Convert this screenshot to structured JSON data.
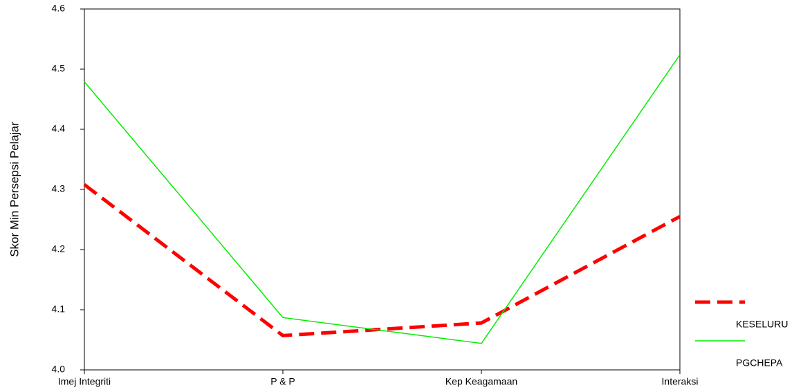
{
  "chart_data": {
    "type": "line",
    "y_label": "Skor Min Persepsi Pelajar",
    "categories": [
      "Imej Integriti",
      "P & P",
      "Kep Keagamaan",
      "Interaksi"
    ],
    "series": [
      {
        "name": "KESELURU",
        "color": "#ff0000",
        "dashed": true,
        "values": [
          4.308,
          4.057,
          4.078,
          4.255
        ]
      },
      {
        "name": "PGCHEPA",
        "color": "#00ee00",
        "dashed": false,
        "values": [
          4.479,
          4.087,
          4.044,
          4.524
        ]
      }
    ],
    "ylim": [
      4.0,
      4.6
    ],
    "yticks": [
      {
        "value": 4.0,
        "label": "4.0"
      },
      {
        "value": 4.1,
        "label": "4.1"
      },
      {
        "value": 4.2,
        "label": "4.2"
      },
      {
        "value": 4.3,
        "label": "4.3"
      },
      {
        "value": 4.4,
        "label": "4.4"
      },
      {
        "value": 4.5,
        "label": "4.5"
      },
      {
        "value": 4.6,
        "label": "4.6"
      }
    ],
    "legend": "right"
  }
}
